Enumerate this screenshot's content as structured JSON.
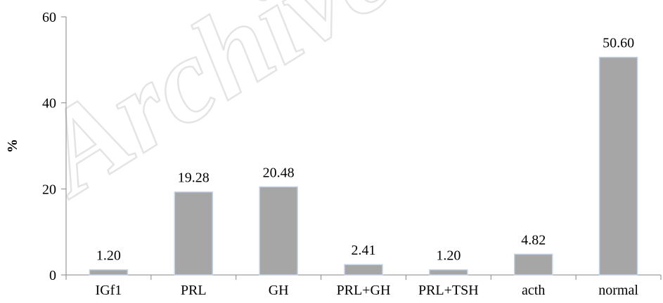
{
  "watermark": "Archive",
  "chart_data": {
    "type": "bar",
    "categories": [
      "IGf1",
      "PRL",
      "GH",
      "PRL+GH",
      "PRL+TSH",
      "acth",
      "normal"
    ],
    "values": [
      1.2,
      19.28,
      20.48,
      2.41,
      1.2,
      4.82,
      50.6
    ],
    "value_labels": [
      "1.20",
      "19.28",
      "20.48",
      "2.41",
      "1.20",
      "4.82",
      "50.60"
    ],
    "title": "",
    "xlabel": "",
    "ylabel": "%",
    "ylim": [
      0,
      60
    ],
    "yticks": [
      0,
      20,
      40,
      60
    ],
    "grid": false,
    "legend": "none",
    "bar_color": "#a6a6a6",
    "bar_border_color": "#c5d3e6"
  }
}
